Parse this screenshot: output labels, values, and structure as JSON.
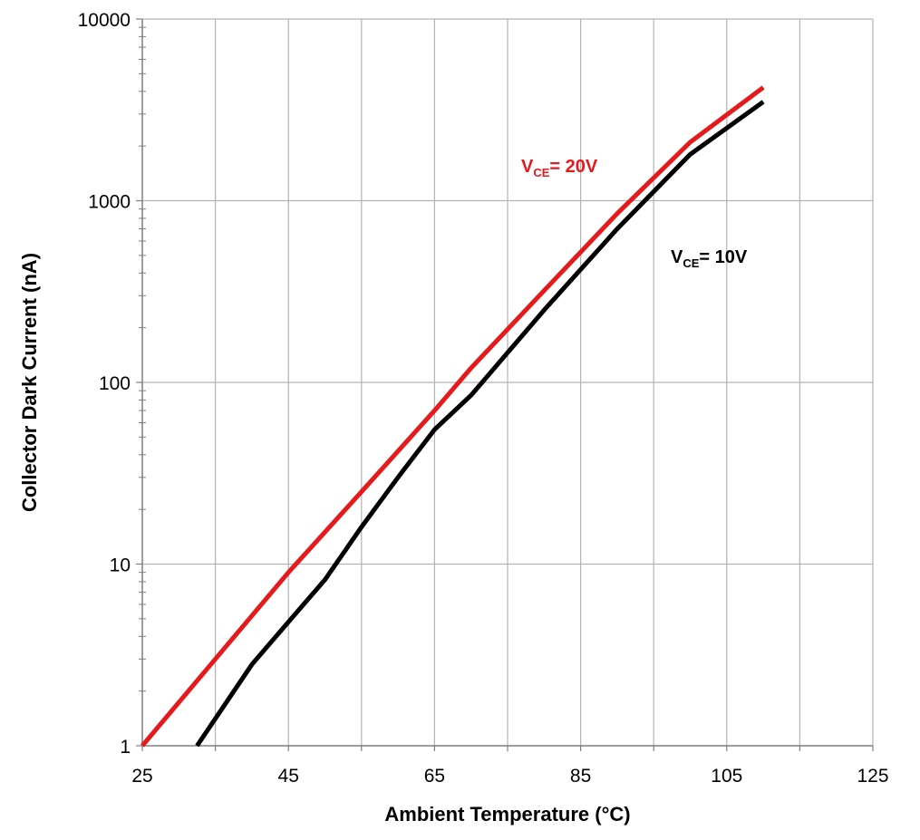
{
  "chart_data": {
    "type": "line",
    "title": "",
    "xlabel": "Ambient Temperature (°C)",
    "ylabel": "Collector Dark Current (nA)",
    "x_scale": "linear",
    "y_scale": "log",
    "xlim": [
      25,
      125
    ],
    "ylim": [
      1,
      10000
    ],
    "x_ticks": [
      "25",
      "45",
      "65",
      "85",
      "105",
      "125"
    ],
    "y_ticks": [
      "1",
      "10",
      "100",
      "1000",
      "10000"
    ],
    "grid": true,
    "series": [
      {
        "name_main": "V",
        "name_sub": "CE",
        "name_rest": "= 20V",
        "color": "#e41a1c",
        "points": [
          [
            25,
            1
          ],
          [
            35,
            3
          ],
          [
            45,
            9
          ],
          [
            55,
            25
          ],
          [
            65,
            70
          ],
          [
            70,
            120
          ],
          [
            80,
            320
          ],
          [
            90,
            850
          ],
          [
            100,
            2100
          ],
          [
            110,
            4200
          ]
        ]
      },
      {
        "name_main": "V",
        "name_sub": "CE",
        "name_rest": "= 10V",
        "color": "#000000",
        "points": [
          [
            32.5,
            1
          ],
          [
            40,
            2.8
          ],
          [
            45,
            4.8
          ],
          [
            50,
            8.2
          ],
          [
            55,
            16
          ],
          [
            60,
            30
          ],
          [
            65,
            55
          ],
          [
            70,
            85
          ],
          [
            80,
            250
          ],
          [
            90,
            700
          ],
          [
            100,
            1800
          ],
          [
            110,
            3500
          ]
        ]
      }
    ]
  }
}
